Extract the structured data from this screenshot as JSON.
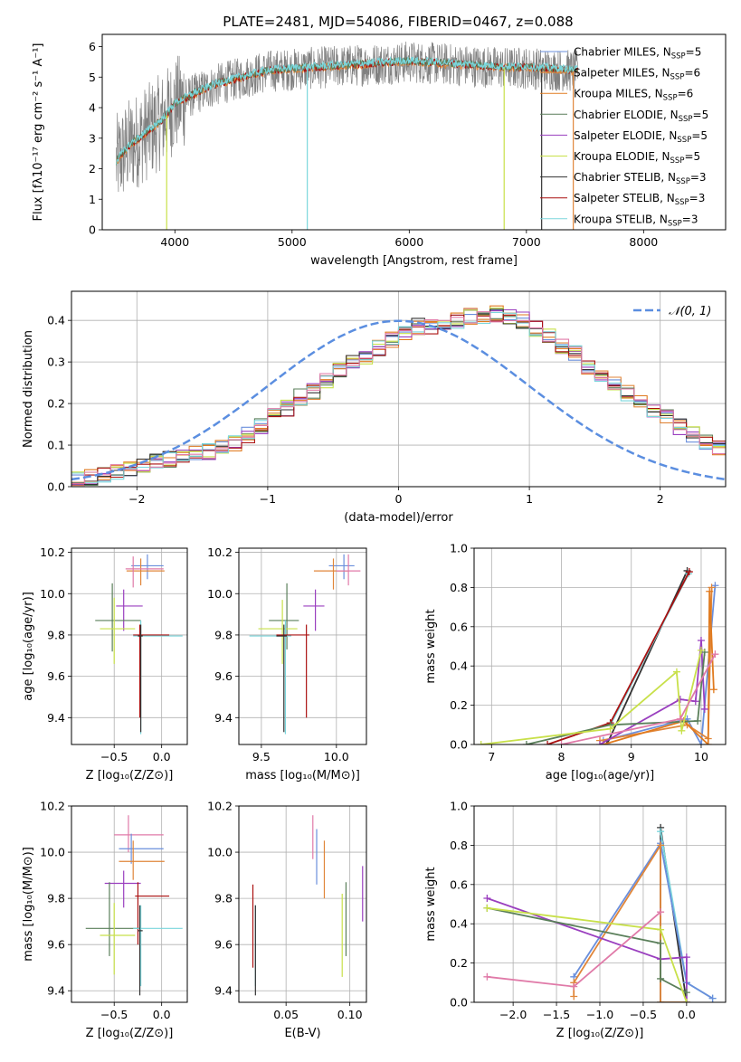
{
  "title": "PLATE=2481, MJD=54086, FIBERID=0467, z=0.088",
  "colors": {
    "chabrier_miles": "#6a8fdc",
    "salpeter_miles": "#e0863a",
    "kroupa_miles": "#e07a1e",
    "chabrier_elodie": "#5a7f5a",
    "salpeter_elodie": "#9a3fbf",
    "kroupa_elodie": "#c8e04a",
    "chabrier_stelib": "#333333",
    "salpeter_stelib": "#aa1111",
    "kroupa_stelib": "#7ad6dc",
    "pink": "#e07aa8",
    "data_grey": "#808080",
    "normal_curve": "#5b8ee0"
  },
  "chart_data": [
    {
      "id": "spectrum",
      "type": "line",
      "xlabel": "wavelength [Angstrom, rest frame]",
      "ylabel_html": "Flux [fλ10⁻¹⁷ erg cm⁻² s⁻¹ A⁻¹]",
      "xlim": [
        3380,
        8700
      ],
      "ylim": [
        0,
        6.4
      ],
      "xticks": [
        4000,
        5000,
        6000,
        7000,
        8000
      ],
      "yticks": [
        0,
        1,
        2,
        3,
        4,
        5,
        6
      ],
      "continuum": {
        "x": [
          3500,
          3600,
          3700,
          3800,
          3900,
          4000,
          4200,
          4400,
          4600,
          4800,
          5000,
          5200,
          5400,
          5600,
          5800,
          6000,
          6200,
          6400,
          6600,
          6800,
          7000,
          7200,
          7400
        ],
        "y": [
          2.2,
          2.7,
          3.0,
          3.3,
          3.6,
          4.1,
          4.5,
          4.8,
          5.0,
          5.2,
          5.25,
          5.3,
          5.35,
          5.4,
          5.45,
          5.5,
          5.45,
          5.4,
          5.35,
          5.3,
          5.3,
          5.25,
          5.2
        ]
      },
      "legend": [
        "Chabrier MILES, N_SSP=5",
        "Salpeter MILES, N_SSP=6",
        "Kroupa MILES, N_SSP=6",
        "Chabrier ELODIE, N_SSP=5",
        "Salpeter ELODIE, N_SSP=5",
        "Kroupa ELODIE, N_SSP=5",
        "Chabrier STELIB, N_SSP=3",
        "Salpeter STELIB, N_SSP=3",
        "Kroupa STELIB, N_SSP=3"
      ],
      "legend_text": [
        {
          "name": "Chabrier MILES, N",
          "sub": "SSP",
          "val": "=5"
        },
        {
          "name": "Salpeter MILES, N",
          "sub": "SSP",
          "val": "=6"
        },
        {
          "name": "Kroupa MILES, N",
          "sub": "SSP",
          "val": "=6"
        },
        {
          "name": "Chabrier ELODIE, N",
          "sub": "SSP",
          "val": "=5"
        },
        {
          "name": "Salpeter ELODIE, N",
          "sub": "SSP",
          "val": "=5"
        },
        {
          "name": "Kroupa ELODIE, N",
          "sub": "SSP",
          "val": "=5"
        },
        {
          "name": "Chabrier STELIB, N",
          "sub": "SSP",
          "val": "=3"
        },
        {
          "name": "Salpeter STELIB, N",
          "sub": "SSP",
          "val": "=3"
        },
        {
          "name": "Kroupa STELIB, N",
          "sub": "SSP",
          "val": "=3"
        }
      ],
      "dips": [
        {
          "x": 3930,
          "y": 0.0
        },
        {
          "x": 5130,
          "y": 0.0
        },
        {
          "x": 6810,
          "y": 0.0
        },
        {
          "x": 7130,
          "y": 0.0
        },
        {
          "x": 7400,
          "y": 0.0
        }
      ]
    },
    {
      "id": "residuals",
      "type": "histogram",
      "xlabel": "(data-model)/error",
      "ylabel": "Normed distribution",
      "xlim": [
        -2.5,
        2.5
      ],
      "ylim": [
        0,
        0.47
      ],
      "xticks": [
        -2,
        -1,
        0,
        1,
        2
      ],
      "yticks": [
        0.0,
        0.1,
        0.2,
        0.3,
        0.4
      ],
      "legend": "𝒩(0, 1)",
      "bin_width": 0.1,
      "bin_start": -2.5,
      "hist_base": [
        0.02,
        0.022,
        0.03,
        0.038,
        0.045,
        0.05,
        0.06,
        0.065,
        0.072,
        0.08,
        0.085,
        0.095,
        0.105,
        0.125,
        0.145,
        0.175,
        0.19,
        0.215,
        0.23,
        0.255,
        0.28,
        0.3,
        0.315,
        0.335,
        0.355,
        0.37,
        0.385,
        0.385,
        0.39,
        0.4,
        0.41,
        0.41,
        0.415,
        0.41,
        0.4,
        0.38,
        0.36,
        0.335,
        0.32,
        0.29,
        0.27,
        0.25,
        0.225,
        0.2,
        0.18,
        0.165,
        0.145,
        0.125,
        0.11,
        0.095
      ]
    },
    {
      "id": "age_vs_Z",
      "type": "scatter",
      "xlabel": "Z [log₁₀(Z/Z⊙)]",
      "ylabel": "age  [log₁₀(age/yr)]",
      "xlim": [
        -0.95,
        0.27
      ],
      "ylim": [
        9.27,
        10.22
      ],
      "xticks": [
        -0.5,
        0.0
      ],
      "yticks": [
        9.4,
        9.6,
        9.8,
        10.0,
        10.2
      ],
      "points": [
        {
          "c": "chabrier_miles",
          "x": -0.15,
          "y": 10.135,
          "xl": -0.32,
          "xr": 0.02,
          "yb": 10.07,
          "yt": 10.19
        },
        {
          "c": "salpeter_miles",
          "x": -0.22,
          "y": 10.11,
          "xl": -0.37,
          "xr": 0.03,
          "yb": 10.04,
          "yt": 10.17
        },
        {
          "c": "pink",
          "x": -0.3,
          "y": 10.12,
          "xl": -0.38,
          "xr": 0.02,
          "yb": 10.03,
          "yt": 10.18
        },
        {
          "c": "salpeter_elodie",
          "x": -0.4,
          "y": 9.94,
          "xl": -0.48,
          "xr": -0.2,
          "yb": 9.82,
          "yt": 10.02
        },
        {
          "c": "chabrier_elodie",
          "x": -0.52,
          "y": 9.87,
          "xl": -0.7,
          "xr": -0.22,
          "yb": 9.72,
          "yt": 10.05
        },
        {
          "c": "kroupa_elodie",
          "x": -0.5,
          "y": 9.83,
          "xl": -0.65,
          "xr": -0.28,
          "yb": 9.66,
          "yt": 9.98
        },
        {
          "c": "kroupa_stelib",
          "x": -0.22,
          "y": 9.795,
          "xl": -0.3,
          "xr": 0.22,
          "yb": 9.32,
          "yt": 9.87
        },
        {
          "c": "salpeter_stelib",
          "x": -0.23,
          "y": 9.8,
          "xl": -0.3,
          "xr": 0.08,
          "yb": 9.4,
          "yt": 9.85
        },
        {
          "c": "chabrier_stelib",
          "x": -0.22,
          "y": 9.795,
          "xl": -0.25,
          "xr": -0.2,
          "yb": 9.33,
          "yt": 9.85
        }
      ]
    },
    {
      "id": "age_vs_mass",
      "type": "scatter",
      "xlabel": "mass [log₁₀(M/M⊙)]",
      "ylabel": "",
      "xlim": [
        9.35,
        10.2
      ],
      "ylim": [
        9.27,
        10.22
      ],
      "xticks": [
        9.5,
        10.0
      ],
      "yticks": [
        9.4,
        9.6,
        9.8,
        10.0,
        10.2
      ],
      "points": [
        {
          "c": "chabrier_miles",
          "x": 10.05,
          "y": 10.135,
          "xl": 9.95,
          "xr": 10.12,
          "yb": 10.07,
          "yt": 10.19
        },
        {
          "c": "salpeter_miles",
          "x": 9.98,
          "y": 10.11,
          "xl": 9.85,
          "xr": 10.08,
          "yb": 10.02,
          "yt": 10.17
        },
        {
          "c": "pink",
          "x": 10.08,
          "y": 10.11,
          "xl": 10.0,
          "xr": 10.16,
          "yb": 10.04,
          "yt": 10.19
        },
        {
          "c": "salpeter_elodie",
          "x": 9.86,
          "y": 9.94,
          "xl": 9.78,
          "xr": 9.92,
          "yb": 9.82,
          "yt": 10.02
        },
        {
          "c": "chabrier_elodie",
          "x": 9.67,
          "y": 9.87,
          "xl": 9.55,
          "xr": 9.75,
          "yb": 9.73,
          "yt": 10.05
        },
        {
          "c": "kroupa_elodie",
          "x": 9.64,
          "y": 9.83,
          "xl": 9.48,
          "xr": 9.74,
          "yb": 9.66,
          "yt": 9.97
        },
        {
          "c": "kroupa_stelib",
          "x": 9.66,
          "y": 9.795,
          "xl": 9.42,
          "xr": 9.7,
          "yb": 9.32,
          "yt": 9.87
        },
        {
          "c": "salpeter_stelib",
          "x": 9.8,
          "y": 9.8,
          "xl": 9.6,
          "xr": 9.82,
          "yb": 9.4,
          "yt": 9.85
        },
        {
          "c": "chabrier_stelib",
          "x": 9.65,
          "y": 9.795,
          "xl": 9.6,
          "xr": 9.67,
          "yb": 9.33,
          "yt": 9.85
        }
      ]
    },
    {
      "id": "weight_vs_age",
      "type": "line",
      "xlabel": "age  [log₁₀(age/yr)]",
      "ylabel": "mass weight",
      "xlim": [
        6.75,
        10.35
      ],
      "ylim": [
        0,
        1.0
      ],
      "xticks": [
        7,
        8,
        9,
        10
      ],
      "yticks": [
        0.0,
        0.2,
        0.4,
        0.6,
        0.8,
        1.0
      ],
      "series": [
        {
          "c": "chabrier_stelib",
          "x": [
            8.65,
            9.8
          ],
          "y": [
            0.0,
            0.885
          ]
        },
        {
          "c": "kroupa_stelib",
          "x": [
            8.7,
            9.82
          ],
          "y": [
            0.1,
            0.87
          ]
        },
        {
          "c": "salpeter_stelib",
          "x": [
            7.8,
            8.7,
            9.83
          ],
          "y": [
            0.0,
            0.11,
            0.88
          ]
        },
        {
          "c": "chabrier_miles",
          "x": [
            8.6,
            9.8,
            10.0,
            10.2
          ],
          "y": [
            0.02,
            0.13,
            0.0,
            0.81
          ]
        },
        {
          "c": "salpeter_miles",
          "x": [
            8.55,
            9.8,
            10.1,
            10.15
          ],
          "y": [
            0.02,
            0.1,
            0.03,
            0.8
          ]
        },
        {
          "c": "kroupa_miles",
          "x": [
            8.6,
            9.75,
            10.1,
            10.12,
            10.18
          ],
          "y": [
            0.0,
            0.12,
            0.0,
            0.78,
            0.28
          ]
        },
        {
          "c": "salpeter_elodie",
          "x": [
            8.55,
            9.7,
            9.92,
            10.0,
            10.05
          ],
          "y": [
            0.0,
            0.23,
            0.22,
            0.53,
            0.18
          ]
        },
        {
          "c": "chabrier_elodie",
          "x": [
            7.5,
            8.7,
            9.95,
            10.05
          ],
          "y": [
            0.0,
            0.1,
            0.12,
            0.47
          ]
        },
        {
          "c": "kroupa_elodie",
          "x": [
            6.85,
            8.7,
            9.65,
            9.72,
            10.0
          ],
          "y": [
            0.0,
            0.08,
            0.37,
            0.07,
            0.48
          ]
        },
        {
          "c": "pink",
          "x": [
            8.0,
            9.7,
            10.2
          ],
          "y": [
            0.0,
            0.13,
            0.46
          ]
        }
      ]
    },
    {
      "id": "mass_vs_Z",
      "type": "scatter",
      "xlabel": "Z [log₁₀(Z/Z⊙)]",
      "ylabel": "mass [log₁₀(M/M⊙)]",
      "xlim": [
        -0.95,
        0.27
      ],
      "ylim": [
        9.35,
        10.2
      ],
      "xticks": [
        -0.5,
        0.0
      ],
      "yticks": [
        9.4,
        9.6,
        9.8,
        10.0,
        10.2
      ],
      "points": [
        {
          "c": "pink",
          "x": -0.35,
          "y": 10.075,
          "xl": -0.5,
          "xr": 0.02,
          "yb": 10.0,
          "yt": 10.16
        },
        {
          "c": "chabrier_miles",
          "x": -0.32,
          "y": 10.015,
          "xl": -0.45,
          "xr": 0.02,
          "yb": 9.95,
          "yt": 10.08
        },
        {
          "c": "salpeter_miles",
          "x": -0.3,
          "y": 9.96,
          "xl": -0.45,
          "xr": 0.03,
          "yb": 9.88,
          "yt": 10.05
        },
        {
          "c": "salpeter_elodie",
          "x": -0.4,
          "y": 9.865,
          "xl": -0.6,
          "xr": -0.22,
          "yb": 9.76,
          "yt": 9.92
        },
        {
          "c": "salpeter_stelib",
          "x": -0.25,
          "y": 9.81,
          "xl": -0.28,
          "xr": 0.08,
          "yb": 9.6,
          "yt": 9.87
        },
        {
          "c": "chabrier_elodie",
          "x": -0.55,
          "y": 9.67,
          "xl": -0.8,
          "xr": -0.22,
          "yb": 9.55,
          "yt": 9.87
        },
        {
          "c": "kroupa_stelib",
          "x": -0.22,
          "y": 9.67,
          "xl": -0.3,
          "xr": 0.22,
          "yb": 9.42,
          "yt": 9.77
        },
        {
          "c": "kroupa_elodie",
          "x": -0.5,
          "y": 9.64,
          "xl": -0.65,
          "xr": -0.28,
          "yb": 9.47,
          "yt": 9.78
        },
        {
          "c": "chabrier_stelib",
          "x": -0.23,
          "y": 9.66,
          "xl": -0.25,
          "xr": -0.2,
          "yb": 9.38,
          "yt": 9.77
        }
      ]
    },
    {
      "id": "mass_vs_ebv",
      "type": "scatter",
      "xlabel": "E(B-V)",
      "ylabel": "",
      "xlim": [
        0.013,
        0.113
      ],
      "ylim": [
        9.35,
        10.2
      ],
      "xticks": [
        0.05,
        0.1
      ],
      "yticks": [
        9.4,
        9.6,
        9.8,
        10.0,
        10.2
      ],
      "points": [
        {
          "c": "pink",
          "x": 0.071,
          "y": 10.08,
          "yb": 9.97,
          "yt": 10.16
        },
        {
          "c": "chabrier_miles",
          "x": 0.074,
          "y": 10.0,
          "yb": 9.86,
          "yt": 10.1
        },
        {
          "c": "salpeter_miles",
          "x": 0.08,
          "y": 9.96,
          "yb": 9.8,
          "yt": 10.05
        },
        {
          "c": "salpeter_elodie",
          "x": 0.11,
          "y": 9.83,
          "yb": 9.7,
          "yt": 9.94
        },
        {
          "c": "chabrier_elodie",
          "x": 0.097,
          "y": 9.73,
          "yb": 9.55,
          "yt": 9.87
        },
        {
          "c": "kroupa_elodie",
          "x": 0.094,
          "y": 9.64,
          "yb": 9.46,
          "yt": 9.82
        },
        {
          "c": "salpeter_stelib",
          "x": 0.024,
          "y": 9.68,
          "yb": 9.5,
          "yt": 9.86
        },
        {
          "c": "kroupa_stelib",
          "x": 0.026,
          "y": 9.6,
          "yb": 9.42,
          "yt": 9.77
        },
        {
          "c": "chabrier_stelib",
          "x": 0.026,
          "y": 9.58,
          "yb": 9.38,
          "yt": 9.77
        }
      ]
    },
    {
      "id": "weight_vs_Z",
      "type": "line",
      "xlabel": "Z [log₁₀(Z/Z⊙)]",
      "ylabel": "mass weight",
      "xlim": [
        -2.45,
        0.45
      ],
      "ylim": [
        0,
        1.0
      ],
      "xticks": [
        -2.0,
        -1.5,
        -1.0,
        -0.5,
        0.0
      ],
      "yticks": [
        0.0,
        0.2,
        0.4,
        0.6,
        0.8,
        1.0
      ],
      "series": [
        {
          "c": "chabrier_stelib",
          "x": [
            -0.3,
            -0.3,
            0.0
          ],
          "y": [
            0.0,
            0.89,
            0.0
          ]
        },
        {
          "c": "kroupa_stelib",
          "x": [
            -0.3,
            0.0,
            0.3
          ],
          "y": [
            0.87,
            0.1,
            0.02
          ]
        },
        {
          "c": "chabrier_miles",
          "x": [
            -1.3,
            -0.3,
            0.0,
            0.3
          ],
          "y": [
            0.13,
            0.81,
            0.1,
            0.02
          ]
        },
        {
          "c": "salpeter_miles",
          "x": [
            -1.3,
            -1.3,
            -0.3,
            -0.3,
            0.0
          ],
          "y": [
            0.03,
            0.1,
            0.8,
            0.0,
            0.0
          ]
        },
        {
          "c": "salpeter_elodie",
          "x": [
            -2.3,
            -0.3,
            0.0,
            0.0
          ],
          "y": [
            0.53,
            0.22,
            0.23,
            0.0
          ]
        },
        {
          "c": "chabrier_elodie",
          "x": [
            -2.3,
            -0.3,
            -0.3,
            0.0
          ],
          "y": [
            0.48,
            0.3,
            0.12,
            0.05
          ]
        },
        {
          "c": "kroupa_elodie",
          "x": [
            -2.3,
            -0.3,
            0.0
          ],
          "y": [
            0.48,
            0.37,
            0.0
          ]
        },
        {
          "c": "pink",
          "x": [
            -2.3,
            -1.3,
            -0.3
          ],
          "y": [
            0.13,
            0.08,
            0.46
          ]
        }
      ]
    }
  ]
}
